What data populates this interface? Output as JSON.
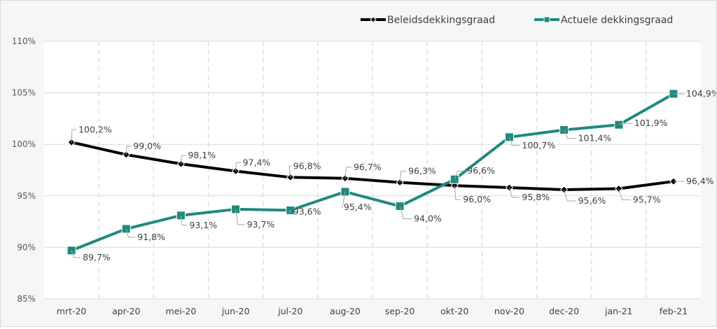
{
  "chart_data": {
    "type": "line",
    "title": "",
    "xlabel": "",
    "ylabel": "",
    "categories": [
      "mrt-20",
      "apr-20",
      "mei-20",
      "jun-20",
      "jul-20",
      "aug-20",
      "sep-20",
      "okt-20",
      "nov-20",
      "dec-20",
      "jan-21",
      "feb-21"
    ],
    "ylim": [
      85,
      110
    ],
    "yticks": [
      85,
      90,
      95,
      100,
      105,
      110
    ],
    "ytick_labels": [
      "85%",
      "90%",
      "95%",
      "100%",
      "105%",
      "110%"
    ],
    "grid": "horizontal solid, vertical dashed",
    "legend": "top-right",
    "series": [
      {
        "name": "Beleidsdekkingsgraad",
        "color": "#000000",
        "marker": "diamond",
        "values": [
          100.2,
          99.0,
          98.1,
          97.4,
          96.8,
          96.7,
          96.3,
          96.0,
          95.8,
          95.6,
          95.7,
          96.4
        ],
        "labels": [
          "100,2%",
          "99,0%",
          "98,1%",
          "97,4%",
          "96,8%",
          "96,7%",
          "96,3%",
          "96,0%",
          "95,8%",
          "95,6%",
          "95,7%",
          "96,4%"
        ]
      },
      {
        "name": "Actuele dekkingsgraad",
        "color": "#1f8a7d",
        "marker": "square",
        "values": [
          89.7,
          91.8,
          93.1,
          93.7,
          93.6,
          95.4,
          94.0,
          96.6,
          100.7,
          101.4,
          101.9,
          104.9
        ],
        "labels": [
          "89,7%",
          "91,8%",
          "93,1%",
          "93,7%",
          "93,6%",
          "95,4%",
          "94,0%",
          "96,6%",
          "100,7%",
          "101,4%",
          "101,9%",
          "104,9%"
        ]
      }
    ]
  }
}
